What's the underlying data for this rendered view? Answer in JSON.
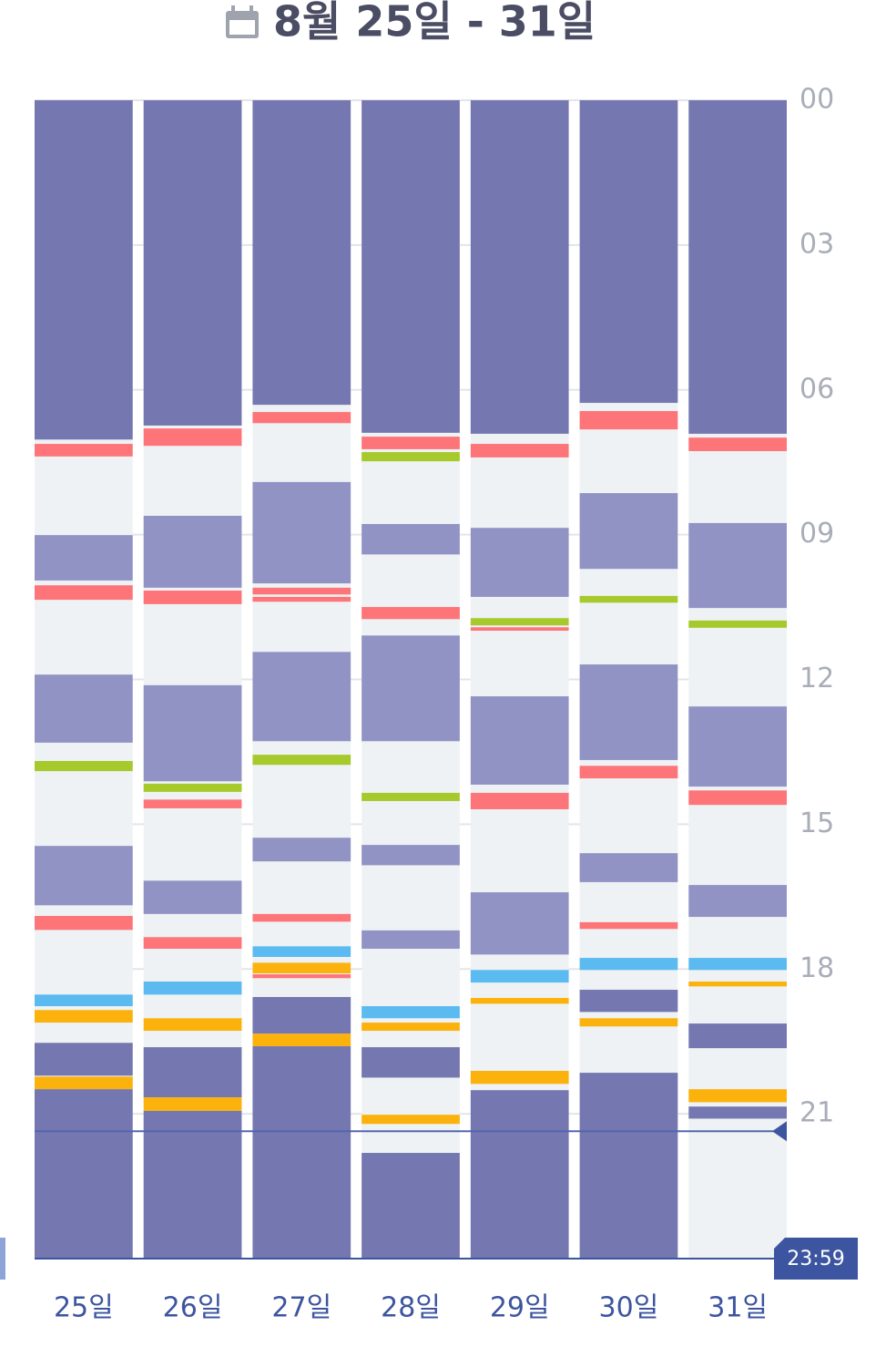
{
  "chart_data": {
    "type": "timeline",
    "title": "8월 25일 - 31일",
    "categories": [
      "25일",
      "26일",
      "27일",
      "28일",
      "29일",
      "30일",
      "31일"
    ],
    "ylim": [
      0,
      24
    ],
    "yticks": [
      {
        "value": 0,
        "label": "00"
      },
      {
        "value": 3,
        "label": "03"
      },
      {
        "value": 6,
        "label": "06"
      },
      {
        "value": 9,
        "label": "09"
      },
      12,
      15,
      18,
      21
    ],
    "grid": true,
    "now": 21.36,
    "end_label": "23:59",
    "days": [
      [
        {
          "start": 0,
          "end": 7.03,
          "color": "#7577b0"
        },
        {
          "start": 7.12,
          "end": 7.38,
          "color": "#fd7479"
        },
        {
          "start": 9.01,
          "end": 9.95,
          "color": "#9193c5"
        },
        {
          "start": 10.05,
          "end": 10.35,
          "color": "#fd7479"
        },
        {
          "start": 11.9,
          "end": 13.31,
          "color": "#9193c5"
        },
        {
          "start": 13.69,
          "end": 13.9,
          "color": "#a6c92c"
        },
        {
          "start": 15.45,
          "end": 16.68,
          "color": "#9193c5"
        },
        {
          "start": 16.9,
          "end": 17.19,
          "color": "#fd7479"
        },
        {
          "start": 18.53,
          "end": 18.77,
          "color": "#5bbaf0"
        },
        {
          "start": 18.85,
          "end": 19.11,
          "color": "#fcb20d"
        },
        {
          "start": 19.53,
          "end": 20.21,
          "color": "#7577b0"
        },
        {
          "start": 20.23,
          "end": 20.49,
          "color": "#fcb20d"
        },
        {
          "start": 20.49,
          "end": 24,
          "color": "#7577b0"
        }
      ],
      [
        {
          "start": 0,
          "end": 6.74,
          "color": "#7577b0"
        },
        {
          "start": 6.8,
          "end": 7.16,
          "color": "#fd7479"
        },
        {
          "start": 8.61,
          "end": 10.1,
          "color": "#9193c5"
        },
        {
          "start": 10.16,
          "end": 10.44,
          "color": "#fd7479"
        },
        {
          "start": 12.12,
          "end": 14.11,
          "color": "#9193c5"
        },
        {
          "start": 14.16,
          "end": 14.33,
          "color": "#a6c92c"
        },
        {
          "start": 14.49,
          "end": 14.67,
          "color": "#fd7479"
        },
        {
          "start": 16.17,
          "end": 16.86,
          "color": "#9193c5"
        },
        {
          "start": 17.34,
          "end": 17.58,
          "color": "#fd7479"
        },
        {
          "start": 18.26,
          "end": 18.53,
          "color": "#5bbaf0"
        },
        {
          "start": 19.02,
          "end": 19.28,
          "color": "#fcb20d"
        },
        {
          "start": 19.62,
          "end": 20.66,
          "color": "#7577b0"
        },
        {
          "start": 20.66,
          "end": 20.94,
          "color": "#fcb20d"
        },
        {
          "start": 20.94,
          "end": 24,
          "color": "#7577b0"
        }
      ],
      [
        {
          "start": 0,
          "end": 6.31,
          "color": "#7577b0"
        },
        {
          "start": 6.46,
          "end": 6.69,
          "color": "#fd7479"
        },
        {
          "start": 7.91,
          "end": 10.01,
          "color": "#9193c5"
        },
        {
          "start": 10.1,
          "end": 10.24,
          "color": "#fd7479"
        },
        {
          "start": 10.29,
          "end": 10.39,
          "color": "#fd7479"
        },
        {
          "start": 11.43,
          "end": 13.28,
          "color": "#9193c5"
        },
        {
          "start": 13.56,
          "end": 13.77,
          "color": "#a6c92c"
        },
        {
          "start": 15.28,
          "end": 15.77,
          "color": "#9193c5"
        },
        {
          "start": 16.86,
          "end": 17.02,
          "color": "#fd7479"
        },
        {
          "start": 17.53,
          "end": 17.75,
          "color": "#5bbaf0"
        },
        {
          "start": 17.87,
          "end": 18.09,
          "color": "#fcb20d"
        },
        {
          "start": 18.11,
          "end": 18.19,
          "color": "#fd7479"
        },
        {
          "start": 18.58,
          "end": 19.34,
          "color": "#7577b0"
        },
        {
          "start": 19.34,
          "end": 19.6,
          "color": "#fcb20d"
        },
        {
          "start": 19.6,
          "end": 24,
          "color": "#7577b0"
        }
      ],
      [
        {
          "start": 0,
          "end": 6.89,
          "color": "#7577b0"
        },
        {
          "start": 6.97,
          "end": 7.23,
          "color": "#fd7479"
        },
        {
          "start": 7.29,
          "end": 7.48,
          "color": "#a6c92c"
        },
        {
          "start": 8.78,
          "end": 9.41,
          "color": "#9193c5"
        },
        {
          "start": 10.5,
          "end": 10.75,
          "color": "#fd7479"
        },
        {
          "start": 11.09,
          "end": 13.28,
          "color": "#9193c5"
        },
        {
          "start": 14.35,
          "end": 14.52,
          "color": "#a6c92c"
        },
        {
          "start": 15.43,
          "end": 15.85,
          "color": "#9193c5"
        },
        {
          "start": 17.2,
          "end": 17.58,
          "color": "#9193c5"
        },
        {
          "start": 18.77,
          "end": 19.02,
          "color": "#5bbaf0"
        },
        {
          "start": 19.11,
          "end": 19.28,
          "color": "#fcb20d"
        },
        {
          "start": 19.62,
          "end": 20.25,
          "color": "#7577b0"
        },
        {
          "start": 21.02,
          "end": 21.21,
          "color": "#fcb20d"
        },
        {
          "start": 21.81,
          "end": 24,
          "color": "#7577b0"
        }
      ],
      [
        {
          "start": 0,
          "end": 6.91,
          "color": "#7577b0"
        },
        {
          "start": 7.12,
          "end": 7.4,
          "color": "#fd7479"
        },
        {
          "start": 8.86,
          "end": 10.29,
          "color": "#9193c5"
        },
        {
          "start": 10.73,
          "end": 10.88,
          "color": "#a6c92c"
        },
        {
          "start": 10.92,
          "end": 10.99,
          "color": "#fd7479"
        },
        {
          "start": 12.35,
          "end": 14.18,
          "color": "#9193c5"
        },
        {
          "start": 14.35,
          "end": 14.69,
          "color": "#fd7479"
        },
        {
          "start": 16.41,
          "end": 17.7,
          "color": "#9193c5"
        },
        {
          "start": 18.02,
          "end": 18.28,
          "color": "#5bbaf0"
        },
        {
          "start": 18.6,
          "end": 18.72,
          "color": "#fcb20d"
        },
        {
          "start": 20.11,
          "end": 20.38,
          "color": "#fcb20d"
        },
        {
          "start": 20.51,
          "end": 24,
          "color": "#7577b0"
        }
      ],
      [
        {
          "start": 0,
          "end": 6.27,
          "color": "#7577b0"
        },
        {
          "start": 6.44,
          "end": 6.82,
          "color": "#fd7479"
        },
        {
          "start": 8.14,
          "end": 9.71,
          "color": "#9193c5"
        },
        {
          "start": 10.27,
          "end": 10.41,
          "color": "#a6c92c"
        },
        {
          "start": 11.69,
          "end": 13.67,
          "color": "#9193c5"
        },
        {
          "start": 13.79,
          "end": 14.05,
          "color": "#fd7479"
        },
        {
          "start": 15.6,
          "end": 16.2,
          "color": "#9193c5"
        },
        {
          "start": 17.03,
          "end": 17.17,
          "color": "#fd7479"
        },
        {
          "start": 17.77,
          "end": 18.02,
          "color": "#5bbaf0"
        },
        {
          "start": 18.43,
          "end": 18.89,
          "color": "#7577b0"
        },
        {
          "start": 19.02,
          "end": 19.19,
          "color": "#fcb20d"
        },
        {
          "start": 20.15,
          "end": 24,
          "color": "#7577b0"
        }
      ],
      [
        {
          "start": 0,
          "end": 6.91,
          "color": "#7577b0"
        },
        {
          "start": 6.99,
          "end": 7.27,
          "color": "#fd7479"
        },
        {
          "start": 8.76,
          "end": 10.52,
          "color": "#9193c5"
        },
        {
          "start": 10.78,
          "end": 10.93,
          "color": "#a6c92c"
        },
        {
          "start": 12.56,
          "end": 14.22,
          "color": "#9193c5"
        },
        {
          "start": 14.3,
          "end": 14.6,
          "color": "#fd7479"
        },
        {
          "start": 16.26,
          "end": 16.92,
          "color": "#9193c5"
        },
        {
          "start": 17.77,
          "end": 18.02,
          "color": "#5bbaf0"
        },
        {
          "start": 18.26,
          "end": 18.36,
          "color": "#fcb20d"
        },
        {
          "start": 19.13,
          "end": 19.64,
          "color": "#7577b0"
        },
        {
          "start": 20.49,
          "end": 20.76,
          "color": "#fcb20d"
        },
        {
          "start": 20.85,
          "end": 21.1,
          "color": "#7577b0"
        }
      ]
    ]
  }
}
